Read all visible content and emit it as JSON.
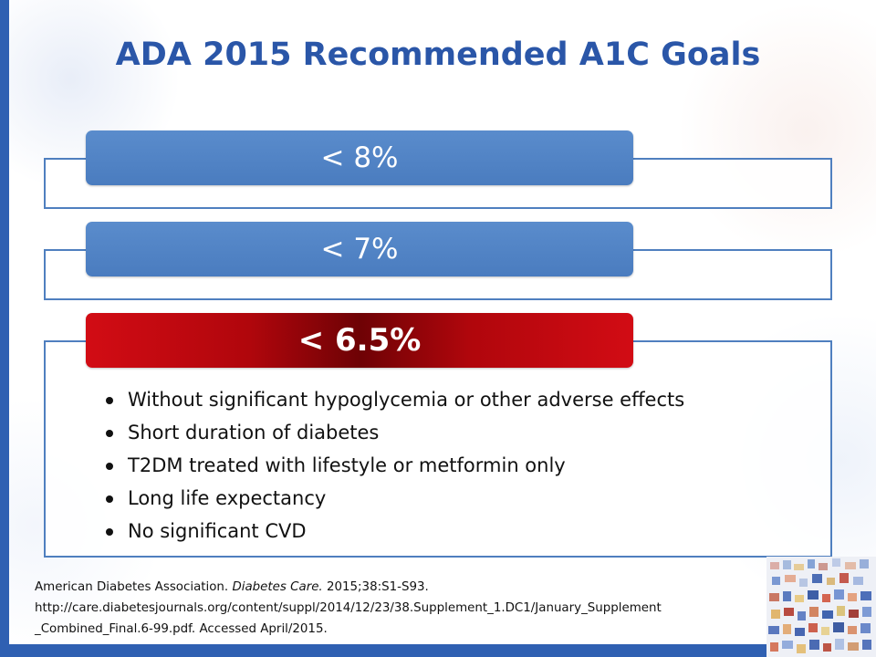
{
  "slide": {
    "title": "ADA 2015 Recommended A1C Goals",
    "goals": [
      {
        "label": "< 8%"
      },
      {
        "label": "< 7%"
      },
      {
        "label": "< 6.5%"
      }
    ],
    "bullets": [
      "Without significant hypoglycemia or other adverse effects",
      "Short duration of diabetes",
      "T2DM treated with lifestyle or metformin only",
      "Long life expectancy",
      "No significant CVD"
    ],
    "reference": {
      "author": "American Diabetes Association. ",
      "journal": "Diabetes Care.",
      "citation": " 2015;38:S1-S93.",
      "url_line1": "http://care.diabetesjournals.org/content/suppl/2014/12/23/38.Supplement_1.DC1/January_Supplement",
      "url_line2": "_Combined_Final.6-99.pdf. Accessed April/2015."
    }
  },
  "colors": {
    "accent_blue": "#2f60b2",
    "title_blue": "#2a56a8",
    "pill_blue": "#4f7fbf",
    "pill_red": "#c00000"
  },
  "decor": {
    "mosaic_image": "mosaic-image"
  }
}
